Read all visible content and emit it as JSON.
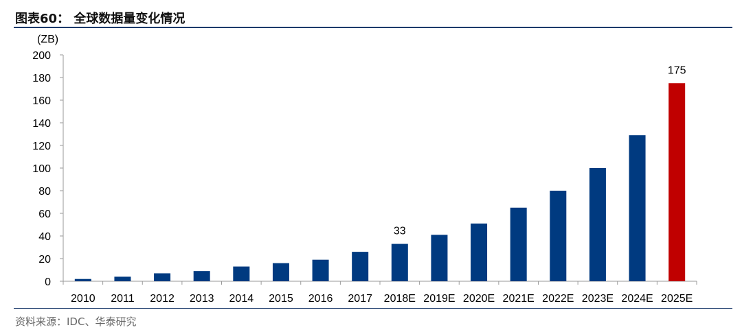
{
  "header": {
    "title": "图表60： 全球数据量变化情况"
  },
  "source": "资料来源：IDC、华泰研究",
  "colors": {
    "bar": "#003a80",
    "highlight_bar": "#c00000",
    "rule": "#1b3a6b"
  },
  "chart_data": {
    "type": "bar",
    "unit_label": "(ZB)",
    "categories": [
      "2010",
      "2011",
      "2012",
      "2013",
      "2014",
      "2015",
      "2016",
      "2017",
      "2018E",
      "2019E",
      "2020E",
      "2021E",
      "2022E",
      "2023E",
      "2024E",
      "2025E"
    ],
    "values": [
      2,
      4,
      7,
      9,
      13,
      16,
      19,
      26,
      33,
      41,
      51,
      65,
      80,
      100,
      129,
      175
    ],
    "data_labels": [
      {
        "category": "2018E",
        "text": "33"
      },
      {
        "category": "2025E",
        "text": "175"
      }
    ],
    "highlight_category": "2025E",
    "ylim": [
      0,
      200
    ],
    "yticks": [
      0,
      20,
      40,
      60,
      80,
      100,
      120,
      140,
      160,
      180,
      200
    ],
    "grid": false,
    "legend": "none"
  }
}
